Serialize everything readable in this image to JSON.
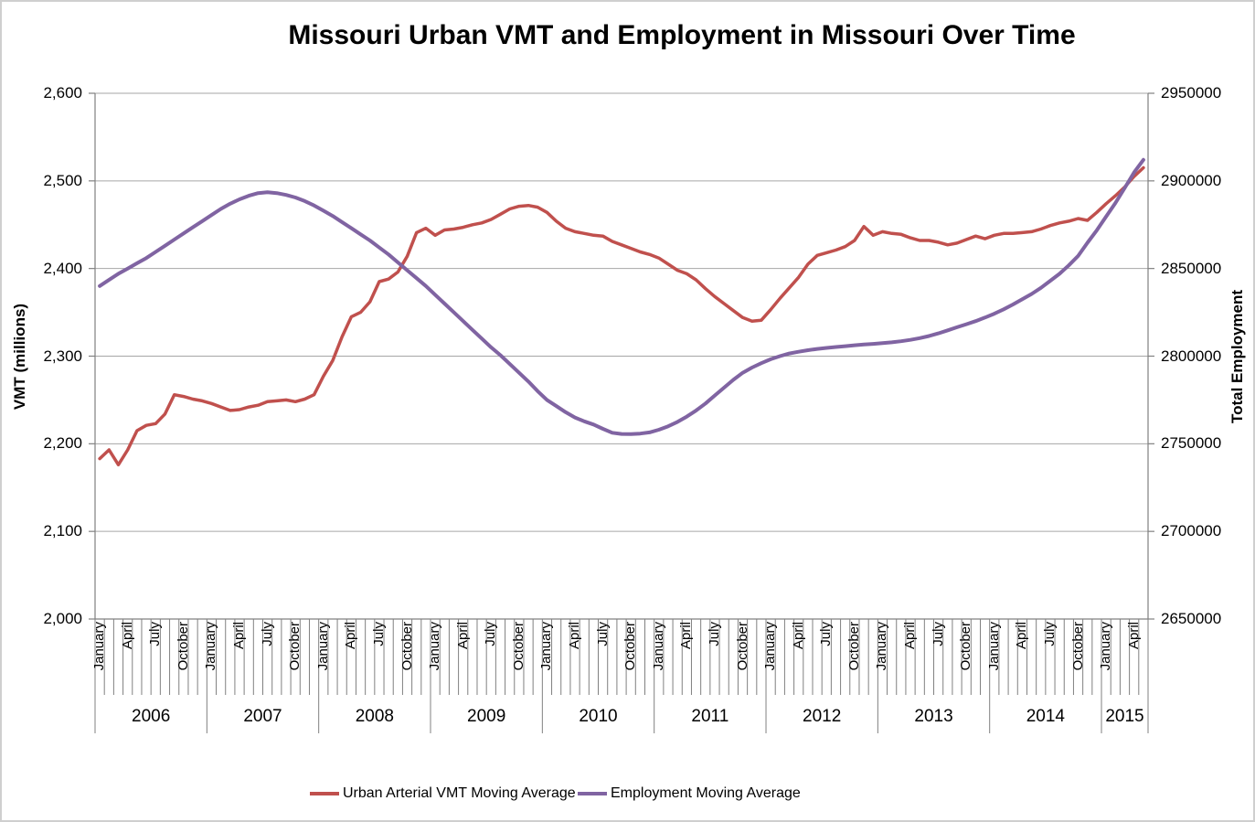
{
  "title": "Missouri Urban VMT and Employment in Missouri Over Time",
  "chart_data": {
    "type": "line",
    "title": "Missouri Urban VMT and Employment in Missouri Over Time",
    "grid": true,
    "legend_position": "bottom",
    "y_left": {
      "label": "VMT (millions)",
      "min": 2000,
      "max": 2600,
      "step": 100,
      "tick_labels": [
        "2,600",
        "2,500",
        "2,400",
        "2,300",
        "2,200",
        "2,100",
        "2,000"
      ]
    },
    "y_right": {
      "label": "Total Employment",
      "min": 2650000,
      "max": 2950000,
      "step": 50000,
      "tick_labels": [
        "2950000",
        "2900000",
        "2850000",
        "2800000",
        "2750000",
        "2700000",
        "2650000"
      ]
    },
    "x": {
      "start": "2006-01",
      "end": "2015-05",
      "month_labels_shown": [
        "January",
        "April",
        "July",
        "October"
      ],
      "years": [
        {
          "label": "2006",
          "months": 12
        },
        {
          "label": "2007",
          "months": 12
        },
        {
          "label": "2008",
          "months": 12
        },
        {
          "label": "2009",
          "months": 12
        },
        {
          "label": "2010",
          "months": 12
        },
        {
          "label": "2011",
          "months": 12
        },
        {
          "label": "2012",
          "months": 12
        },
        {
          "label": "2013",
          "months": 12
        },
        {
          "label": "2014",
          "months": 12
        },
        {
          "label": "2015",
          "months": 5
        }
      ]
    },
    "series": [
      {
        "name": "Urban Arterial VMT Moving Average",
        "axis": "left",
        "color": "#C0504D",
        "values": [
          2183,
          2193,
          2176,
          2193,
          2215,
          2221,
          2223,
          2234,
          2256,
          2254,
          2251,
          2249,
          2246,
          2242,
          2238,
          2239,
          2242,
          2244,
          2248,
          2249,
          2250,
          2248,
          2251,
          2256,
          2277,
          2295,
          2322,
          2345,
          2350,
          2362,
          2385,
          2388,
          2396,
          2414,
          2441,
          2446,
          2438,
          2444,
          2445,
          2447,
          2450,
          2452,
          2456,
          2462,
          2468,
          2471,
          2472,
          2470,
          2464,
          2454,
          2446,
          2442,
          2440,
          2438,
          2437,
          2431,
          2427,
          2423,
          2419,
          2416,
          2412,
          2405,
          2398,
          2394,
          2387,
          2377,
          2368,
          2360,
          2352,
          2344,
          2340,
          2341,
          2353,
          2366,
          2378,
          2390,
          2405,
          2415,
          2418,
          2421,
          2425,
          2432,
          2448,
          2438,
          2442,
          2440,
          2439,
          2435,
          2432,
          2432,
          2430,
          2427,
          2429,
          2433,
          2437,
          2434,
          2438,
          2440,
          2440,
          2441,
          2442,
          2445,
          2449,
          2452,
          2454,
          2457,
          2455,
          2464,
          2474,
          2483,
          2493,
          2505,
          2515
        ]
      },
      {
        "name": "Employment Moving Average",
        "axis": "right",
        "color": "#8064A2",
        "values": [
          2840000,
          2843500,
          2847000,
          2850000,
          2853000,
          2856000,
          2859500,
          2863000,
          2866500,
          2870000,
          2873500,
          2877000,
          2880500,
          2884000,
          2887000,
          2889500,
          2891500,
          2893000,
          2893500,
          2893000,
          2892000,
          2890500,
          2888500,
          2886000,
          2883000,
          2880000,
          2876500,
          2873000,
          2869500,
          2866000,
          2862000,
          2858000,
          2853500,
          2849000,
          2844500,
          2840000,
          2835000,
          2830000,
          2825000,
          2820000,
          2815000,
          2810000,
          2805000,
          2800500,
          2795500,
          2790500,
          2785500,
          2780000,
          2775000,
          2771500,
          2768000,
          2765000,
          2762800,
          2761000,
          2758500,
          2756300,
          2755600,
          2755500,
          2755800,
          2756500,
          2758000,
          2760000,
          2762500,
          2765500,
          2769000,
          2773000,
          2777500,
          2782000,
          2786500,
          2790500,
          2793500,
          2796000,
          2798200,
          2800000,
          2801500,
          2802500,
          2803400,
          2804100,
          2804700,
          2805200,
          2805700,
          2806200,
          2806600,
          2807000,
          2807400,
          2807900,
          2808500,
          2809300,
          2810300,
          2811500,
          2813000,
          2814700,
          2816500,
          2818200,
          2820000,
          2822000,
          2824200,
          2826700,
          2829500,
          2832500,
          2835500,
          2839000,
          2843000,
          2847000,
          2851800,
          2857200,
          2864700,
          2871800,
          2879600,
          2887400,
          2896000,
          2904800,
          2912000
        ]
      }
    ]
  }
}
